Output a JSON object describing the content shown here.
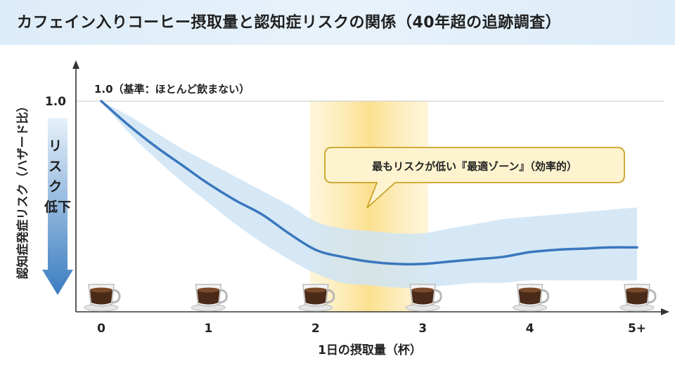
{
  "chart_data": {
    "type": "line",
    "title": "カフェイン入りコーヒー摂取量と認知症リスクの関係（40年超の追跡調査）",
    "xlabel": "1日の摂取量（杯）",
    "ylabel": "認知症発症リスク（ハザード比）",
    "x_ticks": [
      "0",
      "1",
      "2",
      "3",
      "4",
      "5+"
    ],
    "y_ticks": [
      "1.0"
    ],
    "xlim": [
      0,
      5
    ],
    "ylim": [
      0.0,
      1.0
    ],
    "series": [
      {
        "x": [
          0,
          0.25,
          0.5,
          0.75,
          1.0,
          1.25,
          1.5,
          1.75,
          2.0,
          2.25,
          2.5,
          2.75,
          3.0,
          3.25,
          3.5,
          3.75,
          4.0,
          4.25,
          4.5,
          4.75,
          5.0
        ],
        "y": [
          1.0,
          0.9,
          0.81,
          0.73,
          0.65,
          0.58,
          0.52,
          0.44,
          0.37,
          0.34,
          0.32,
          0.31,
          0.31,
          0.32,
          0.33,
          0.34,
          0.36,
          0.37,
          0.375,
          0.38,
          0.38
        ],
        "lower": [
          1.0,
          0.87,
          0.76,
          0.66,
          0.57,
          0.48,
          0.4,
          0.33,
          0.27,
          0.23,
          0.22,
          0.21,
          0.21,
          0.22,
          0.23,
          0.23,
          0.24,
          0.24,
          0.24,
          0.24,
          0.24
        ],
        "upper": [
          1.0,
          0.94,
          0.87,
          0.8,
          0.74,
          0.68,
          0.62,
          0.56,
          0.49,
          0.46,
          0.45,
          0.44,
          0.44,
          0.46,
          0.48,
          0.5,
          0.51,
          0.52,
          0.53,
          0.54,
          0.55
        ]
      }
    ],
    "highlight_band": {
      "x_start": 2.0,
      "x_end": 3.0,
      "color": "#fbe7a6"
    },
    "annotations": {
      "baseline": "1.0（基準：ほとんど飲まない）",
      "callout": "最もリスクが低い『最適ゾーン』（効率的）",
      "risk_arrow": "リスク低下"
    },
    "cup_positions": [
      0,
      1,
      2,
      3,
      4,
      5
    ],
    "grid": false,
    "colors": {
      "line": "#3a77bd",
      "ci_band": "#cfe4f4",
      "highlight": "#fbe7a6",
      "callout_bg": "#fdf3cf",
      "callout_border": "#c9a227",
      "arrow": "#3a7cc0"
    }
  }
}
